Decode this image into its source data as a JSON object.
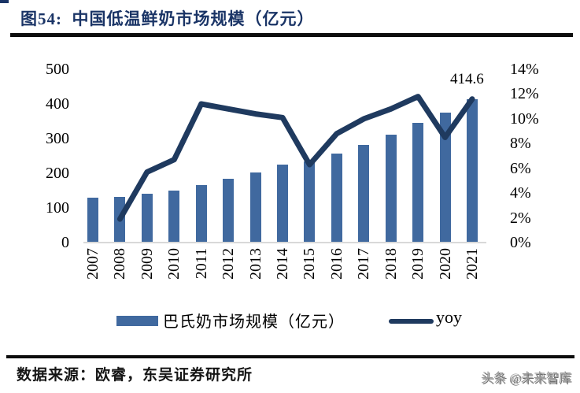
{
  "page": {
    "title": "图54:  中国低温鲜奶市场规模（亿元）",
    "source": "数据来源：欧睿，东吴证券研究所",
    "watermark": "头条 @未来智库"
  },
  "legend": {
    "bar_label": "巴氏奶市场规模（亿元）",
    "line_label": "yoy"
  },
  "colors": {
    "bar": "#40699f",
    "line": "#1f3a5f",
    "title": "#1a3466",
    "baseline": "#d9d9d9"
  },
  "chart_data": {
    "type": "bar",
    "title": "中国低温鲜奶市场规模（亿元）",
    "categories": [
      "2007",
      "2008",
      "2009",
      "2010",
      "2011",
      "2012",
      "2013",
      "2014",
      "2015",
      "2016",
      "2017",
      "2018",
      "2019",
      "2020",
      "2021"
    ],
    "series": [
      {
        "name": "巴氏奶市场规模（亿元）",
        "type": "bar",
        "axis": "left",
        "values": [
          130,
          131,
          140,
          150,
          167,
          184,
          202,
          224,
          233,
          257,
          282,
          312,
          346,
          374,
          414.6
        ]
      },
      {
        "name": "yoy",
        "type": "line",
        "axis": "right",
        "values": [
          null,
          1.9,
          5.7,
          6.7,
          11.2,
          10.8,
          10.4,
          10.1,
          6.3,
          8.8,
          10.0,
          10.8,
          11.8,
          8.5,
          11.6
        ]
      }
    ],
    "left_axis": {
      "label": "",
      "min": 0,
      "max": 500,
      "tick_values": [
        500,
        400,
        300,
        200,
        100,
        0
      ]
    },
    "right_axis": {
      "label": "",
      "min": 0,
      "max": 14,
      "tick_labels": [
        "14%",
        "12%",
        "10%",
        "8%",
        "6%",
        "4%",
        "2%",
        "0%"
      ],
      "tick_values": [
        14,
        12,
        10,
        8,
        6,
        4,
        2,
        0
      ]
    },
    "annotation": {
      "text": "414.6",
      "category": "2021"
    },
    "grid": false,
    "legend_position": "bottom"
  }
}
